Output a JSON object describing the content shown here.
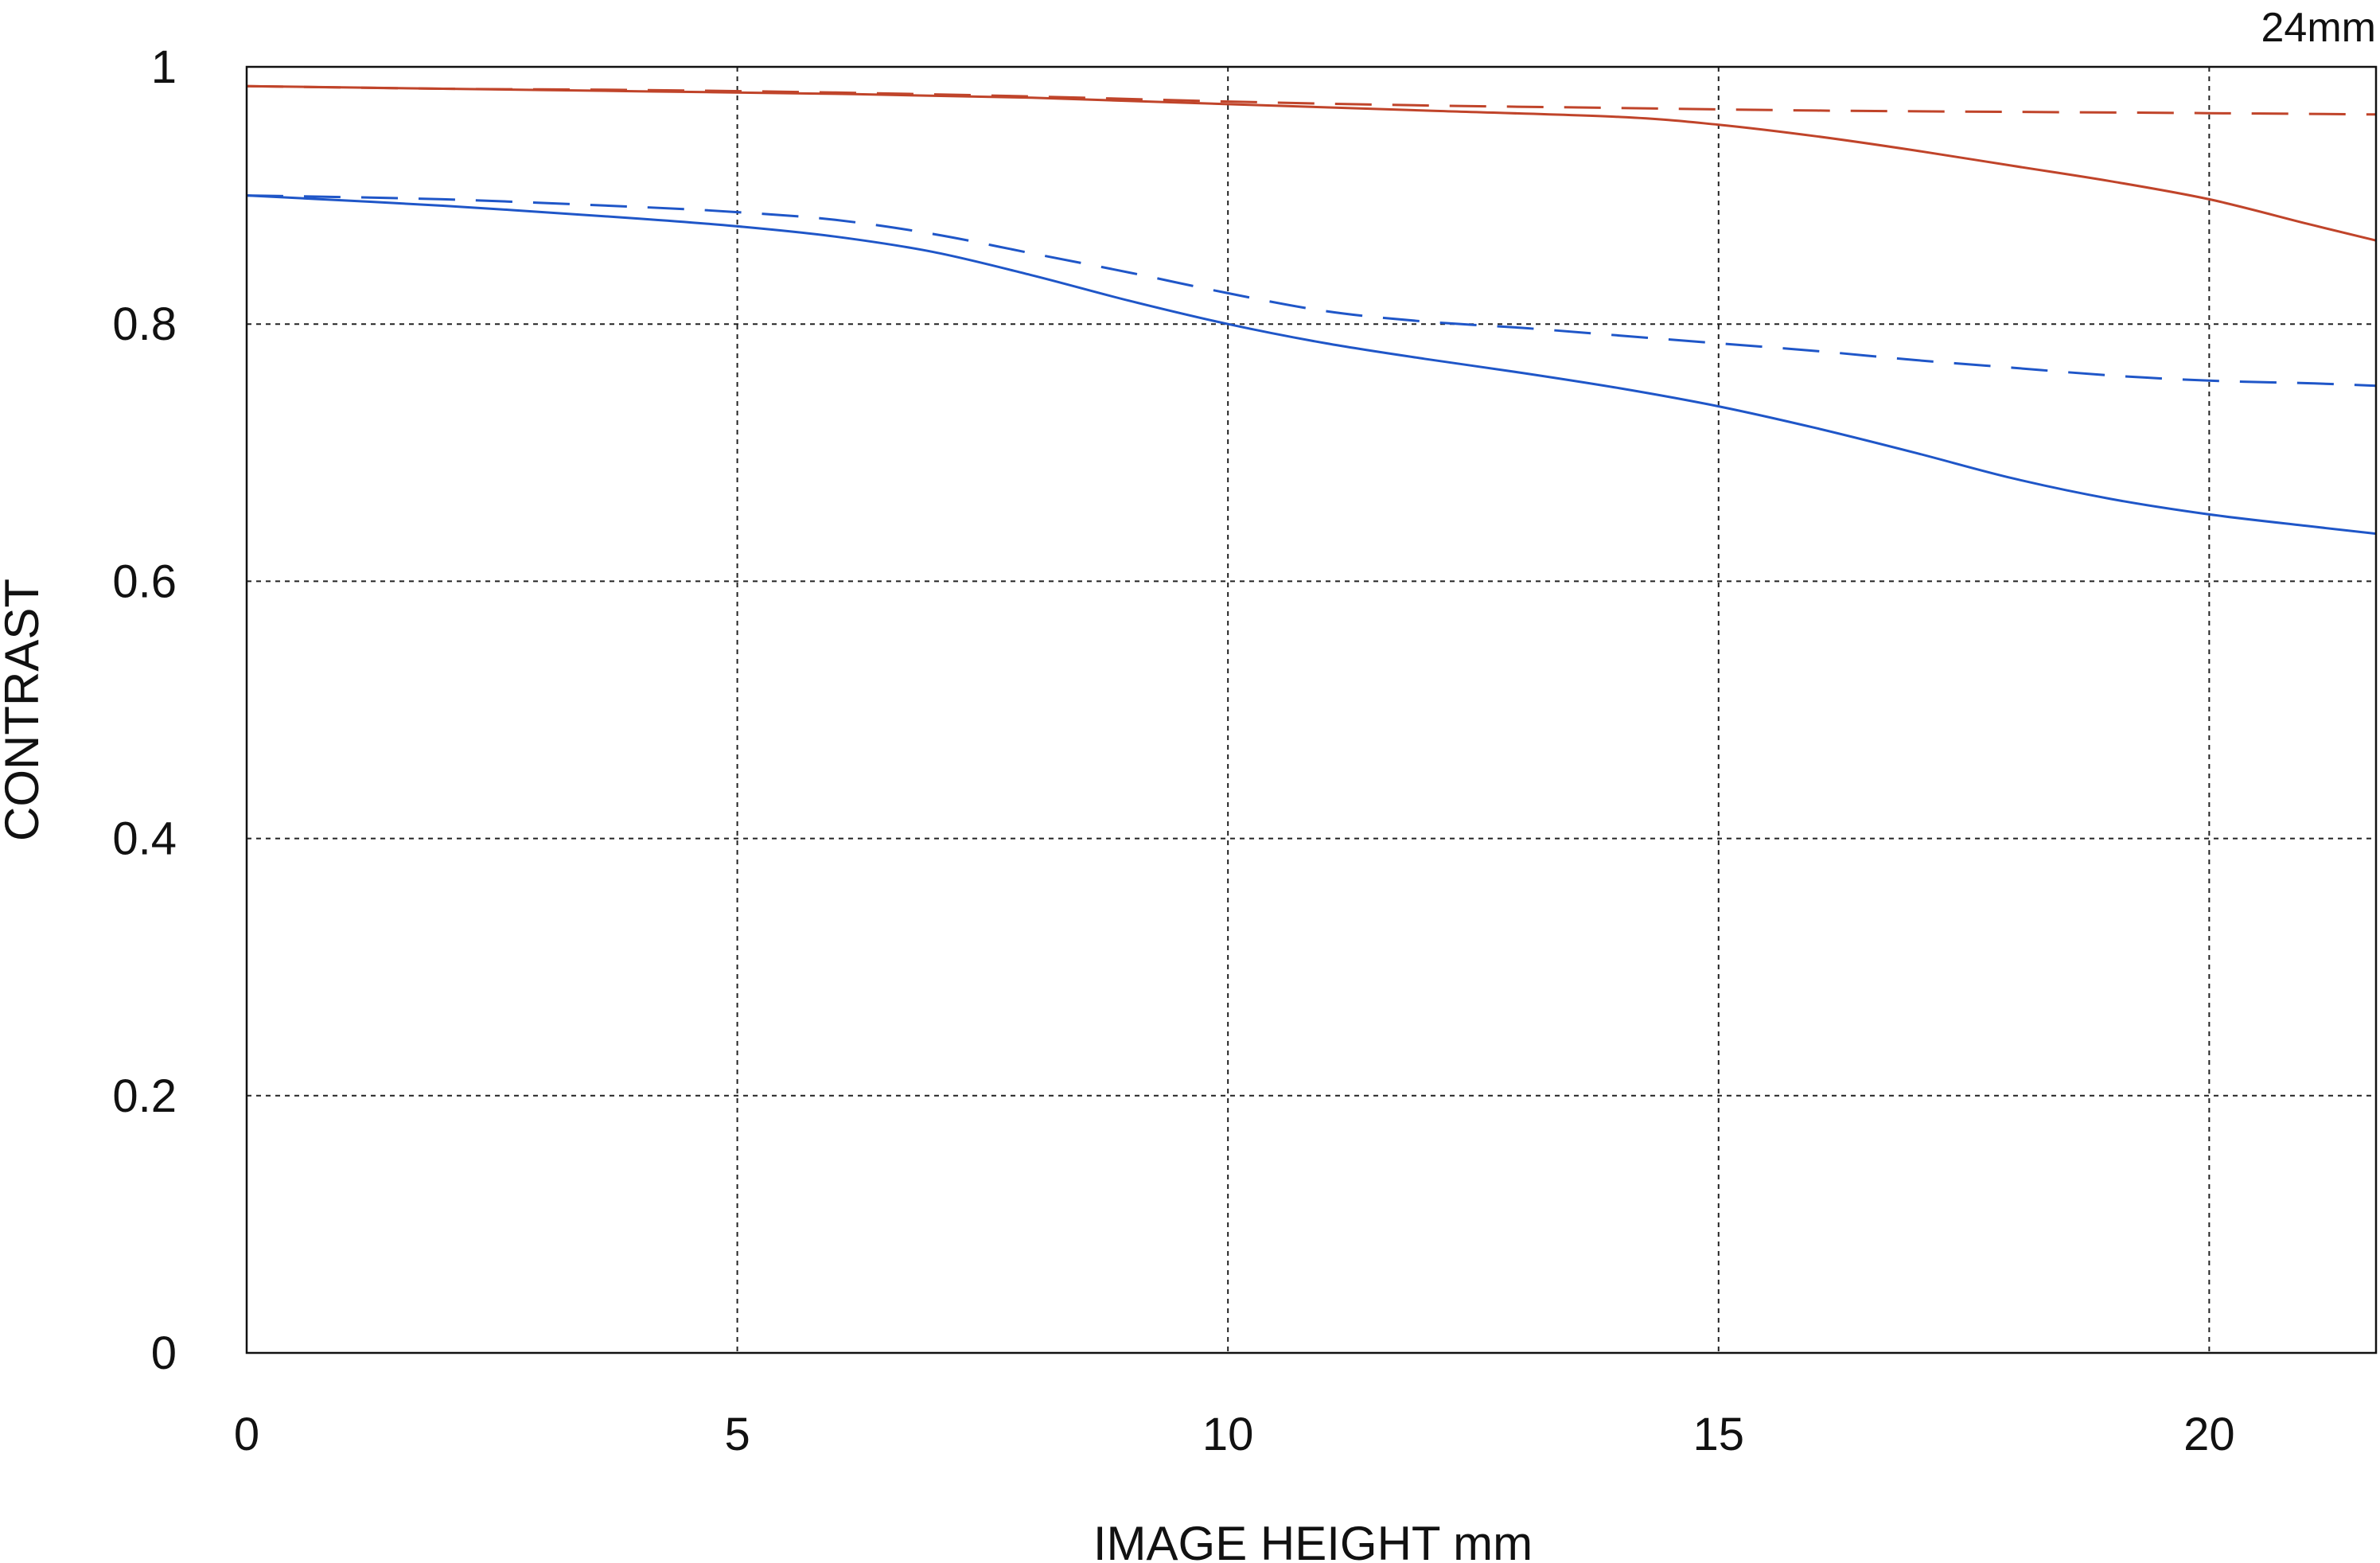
{
  "chart_data": {
    "type": "line",
    "title": "",
    "corner_label": "24mm",
    "xlabel": "IMAGE HEIGHT  mm",
    "ylabel": "CONTRAST",
    "xlim": [
      0,
      21.7
    ],
    "ylim": [
      0,
      1
    ],
    "x_ticks": [
      0,
      5,
      10,
      15,
      20
    ],
    "x_tick_labels": [
      "0",
      "5",
      "10",
      "15",
      "20"
    ],
    "y_ticks": [
      0,
      0.2,
      0.4,
      0.6,
      0.8,
      1
    ],
    "y_tick_labels": [
      "0",
      "0.2",
      "0.4",
      "0.6",
      "0.8",
      "1"
    ],
    "grid": true,
    "series": [
      {
        "color": "#c0442a",
        "style": "solid",
        "x": [
          0,
          2,
          4,
          6,
          8,
          10,
          12,
          14,
          15,
          16,
          17,
          18,
          19,
          20,
          21,
          21.7
        ],
        "y": [
          0.985,
          0.983,
          0.981,
          0.979,
          0.976,
          0.971,
          0.966,
          0.961,
          0.955,
          0.946,
          0.935,
          0.923,
          0.911,
          0.897,
          0.878,
          0.865
        ]
      },
      {
        "color": "#c0442a",
        "style": "dashed",
        "x": [
          0,
          2,
          4,
          6,
          8,
          10,
          12,
          14,
          16,
          18,
          20,
          21.7
        ],
        "y": [
          0.985,
          0.983,
          0.982,
          0.98,
          0.977,
          0.973,
          0.97,
          0.968,
          0.966,
          0.965,
          0.964,
          0.963
        ]
      },
      {
        "color": "#1f56c8",
        "style": "solid",
        "x": [
          0,
          2,
          4,
          5,
          6,
          7,
          8,
          9,
          10,
          11,
          12,
          13,
          14,
          15,
          16,
          17,
          18,
          19,
          20,
          21,
          21.7
        ],
        "y": [
          0.9,
          0.892,
          0.882,
          0.876,
          0.868,
          0.856,
          0.838,
          0.818,
          0.8,
          0.785,
          0.773,
          0.762,
          0.75,
          0.736,
          0.719,
          0.7,
          0.68,
          0.664,
          0.652,
          0.643,
          0.637
        ]
      },
      {
        "color": "#1f56c8",
        "style": "dashed",
        "x": [
          0,
          2,
          4,
          5,
          6,
          7,
          8,
          9,
          10,
          11,
          12,
          13,
          14,
          15,
          16,
          17,
          18,
          19,
          20,
          21,
          21.7
        ],
        "y": [
          0.9,
          0.897,
          0.891,
          0.887,
          0.881,
          0.87,
          0.855,
          0.84,
          0.824,
          0.81,
          0.802,
          0.797,
          0.791,
          0.785,
          0.779,
          0.772,
          0.766,
          0.76,
          0.756,
          0.754,
          0.752
        ]
      }
    ]
  }
}
